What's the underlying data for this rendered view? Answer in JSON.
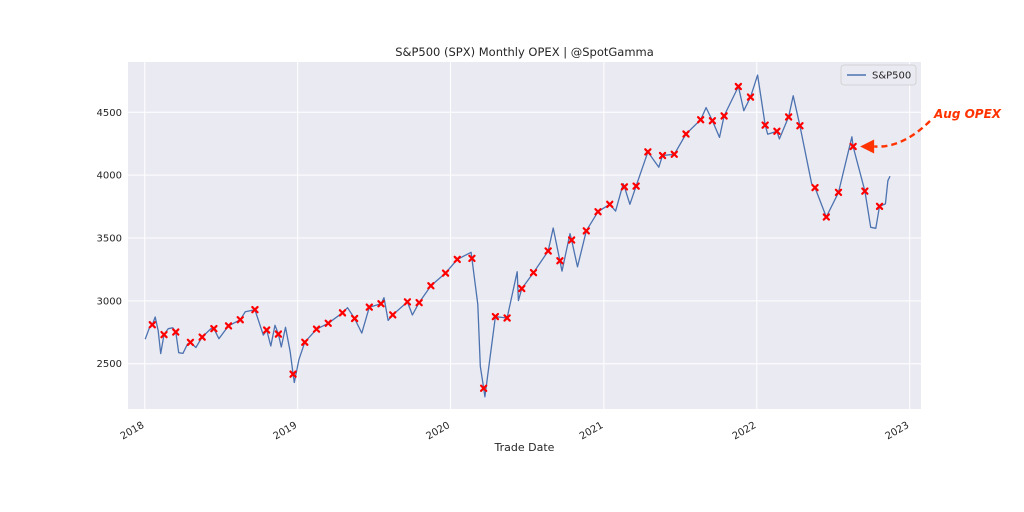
{
  "chart_data": {
    "type": "line",
    "title": "S&P500 (SPX) Monthly OPEX | @SpotGamma",
    "xlabel": "Trade Date",
    "ylabel": "",
    "xlim": [
      "2017-11-22",
      "2023-01-28"
    ],
    "ylim": [
      2140,
      4900
    ],
    "x_ticks": [
      {
        "date": "2018-01-01",
        "label": "2018"
      },
      {
        "date": "2019-01-01",
        "label": "2019"
      },
      {
        "date": "2020-01-01",
        "label": "2020"
      },
      {
        "date": "2021-01-01",
        "label": "2021"
      },
      {
        "date": "2022-01-01",
        "label": "2022"
      },
      {
        "date": "2023-01-01",
        "label": "2023"
      }
    ],
    "y_ticks": [
      2500,
      3000,
      3500,
      4000,
      4500
    ],
    "grid": true,
    "legend": "top-right",
    "colors": {
      "line": "#4c72b0",
      "marker": "#ff0000",
      "annotation": "#ff3300",
      "background": "#eaeaf2",
      "grid": "#ffffff"
    },
    "series": [
      {
        "name": "S&P500",
        "points": [
          [
            "2018-01-02",
            2695
          ],
          [
            "2018-01-12",
            2786
          ],
          [
            "2018-01-19",
            2810
          ],
          [
            "2018-01-26",
            2872
          ],
          [
            "2018-02-02",
            2762
          ],
          [
            "2018-02-08",
            2581
          ],
          [
            "2018-02-16",
            2732
          ],
          [
            "2018-02-26",
            2779
          ],
          [
            "2018-03-09",
            2786
          ],
          [
            "2018-03-16",
            2752
          ],
          [
            "2018-03-23",
            2588
          ],
          [
            "2018-04-02",
            2582
          ],
          [
            "2018-04-13",
            2656
          ],
          [
            "2018-04-20",
            2670
          ],
          [
            "2018-05-03",
            2629
          ],
          [
            "2018-05-18",
            2712
          ],
          [
            "2018-06-08",
            2779
          ],
          [
            "2018-06-15",
            2779
          ],
          [
            "2018-06-27",
            2699
          ],
          [
            "2018-07-20",
            2801
          ],
          [
            "2018-08-17",
            2850
          ],
          [
            "2018-08-29",
            2914
          ],
          [
            "2018-09-21",
            2930
          ],
          [
            "2018-10-11",
            2728
          ],
          [
            "2018-10-19",
            2768
          ],
          [
            "2018-10-29",
            2641
          ],
          [
            "2018-11-08",
            2806
          ],
          [
            "2018-11-16",
            2736
          ],
          [
            "2018-11-23",
            2633
          ],
          [
            "2018-12-03",
            2790
          ],
          [
            "2018-12-14",
            2600
          ],
          [
            "2018-12-21",
            2417
          ],
          [
            "2018-12-24",
            2351
          ],
          [
            "2019-01-04",
            2532
          ],
          [
            "2019-01-18",
            2671
          ],
          [
            "2019-02-15",
            2775
          ],
          [
            "2019-03-15",
            2822
          ],
          [
            "2019-04-18",
            2905
          ],
          [
            "2019-04-30",
            2946
          ],
          [
            "2019-05-17",
            2860
          ],
          [
            "2019-06-03",
            2744
          ],
          [
            "2019-06-21",
            2950
          ],
          [
            "2019-07-19",
            2977
          ],
          [
            "2019-07-26",
            3025
          ],
          [
            "2019-08-05",
            2845
          ],
          [
            "2019-08-16",
            2889
          ],
          [
            "2019-09-20",
            2992
          ],
          [
            "2019-10-02",
            2888
          ],
          [
            "2019-10-18",
            2986
          ],
          [
            "2019-11-15",
            3120
          ],
          [
            "2019-12-20",
            3221
          ],
          [
            "2020-01-17",
            3330
          ],
          [
            "2020-02-19",
            3386
          ],
          [
            "2020-02-21",
            3338
          ],
          [
            "2020-03-06",
            2972
          ],
          [
            "2020-03-12",
            2480
          ],
          [
            "2020-03-20",
            2305
          ],
          [
            "2020-03-23",
            2237
          ],
          [
            "2020-04-17",
            2875
          ],
          [
            "2020-05-15",
            2864
          ],
          [
            "2020-06-08",
            3232
          ],
          [
            "2020-06-11",
            3002
          ],
          [
            "2020-06-19",
            3098
          ],
          [
            "2020-07-17",
            3225
          ],
          [
            "2020-08-21",
            3397
          ],
          [
            "2020-09-02",
            3580
          ],
          [
            "2020-09-18",
            3319
          ],
          [
            "2020-09-23",
            3237
          ],
          [
            "2020-10-12",
            3535
          ],
          [
            "2020-10-16",
            3484
          ],
          [
            "2020-10-30",
            3270
          ],
          [
            "2020-11-20",
            3557
          ],
          [
            "2020-12-18",
            3709
          ],
          [
            "2021-01-15",
            3768
          ],
          [
            "2021-01-29",
            3714
          ],
          [
            "2021-02-16",
            3932
          ],
          [
            "2021-02-19",
            3907
          ],
          [
            "2021-03-04",
            3768
          ],
          [
            "2021-03-19",
            3913
          ],
          [
            "2021-04-16",
            4185
          ],
          [
            "2021-05-12",
            4063
          ],
          [
            "2021-05-21",
            4156
          ],
          [
            "2021-06-18",
            4166
          ],
          [
            "2021-07-16",
            4327
          ],
          [
            "2021-08-20",
            4441
          ],
          [
            "2021-09-02",
            4537
          ],
          [
            "2021-09-17",
            4433
          ],
          [
            "2021-10-04",
            4300
          ],
          [
            "2021-10-15",
            4471
          ],
          [
            "2021-11-18",
            4705
          ],
          [
            "2021-12-01",
            4513
          ],
          [
            "2021-12-17",
            4621
          ],
          [
            "2022-01-03",
            4796
          ],
          [
            "2022-01-21",
            4398
          ],
          [
            "2022-01-27",
            4326
          ],
          [
            "2022-02-18",
            4349
          ],
          [
            "2022-02-24",
            4288
          ],
          [
            "2022-03-18",
            4463
          ],
          [
            "2022-03-29",
            4631
          ],
          [
            "2022-04-14",
            4393
          ],
          [
            "2022-05-12",
            3930
          ],
          [
            "2022-05-20",
            3901
          ],
          [
            "2022-06-16",
            3667
          ],
          [
            "2022-07-15",
            3863
          ],
          [
            "2022-08-16",
            4305
          ],
          [
            "2022-08-19",
            4228
          ],
          [
            "2022-09-16",
            3873
          ],
          [
            "2022-09-30",
            3585
          ],
          [
            "2022-10-12",
            3577
          ],
          [
            "2022-10-21",
            3752
          ],
          [
            "2022-11-04",
            3771
          ],
          [
            "2022-11-10",
            3956
          ],
          [
            "2022-11-15",
            3992
          ]
        ]
      },
      {
        "name": "OPEX",
        "points": [
          [
            "2018-01-19",
            2810
          ],
          [
            "2018-02-16",
            2732
          ],
          [
            "2018-03-16",
            2752
          ],
          [
            "2018-04-20",
            2670
          ],
          [
            "2018-05-18",
            2712
          ],
          [
            "2018-06-15",
            2779
          ],
          [
            "2018-07-20",
            2801
          ],
          [
            "2018-08-17",
            2850
          ],
          [
            "2018-09-21",
            2930
          ],
          [
            "2018-10-19",
            2768
          ],
          [
            "2018-11-16",
            2736
          ],
          [
            "2018-12-21",
            2417
          ],
          [
            "2019-01-18",
            2671
          ],
          [
            "2019-02-15",
            2775
          ],
          [
            "2019-03-15",
            2822
          ],
          [
            "2019-04-18",
            2905
          ],
          [
            "2019-05-17",
            2860
          ],
          [
            "2019-06-21",
            2950
          ],
          [
            "2019-07-19",
            2977
          ],
          [
            "2019-08-16",
            2889
          ],
          [
            "2019-09-20",
            2992
          ],
          [
            "2019-10-18",
            2986
          ],
          [
            "2019-11-15",
            3120
          ],
          [
            "2019-12-20",
            3221
          ],
          [
            "2020-01-17",
            3330
          ],
          [
            "2020-02-21",
            3338
          ],
          [
            "2020-03-20",
            2305
          ],
          [
            "2020-04-17",
            2875
          ],
          [
            "2020-05-15",
            2864
          ],
          [
            "2020-06-19",
            3098
          ],
          [
            "2020-07-17",
            3225
          ],
          [
            "2020-08-21",
            3397
          ],
          [
            "2020-09-18",
            3319
          ],
          [
            "2020-10-16",
            3484
          ],
          [
            "2020-11-20",
            3557
          ],
          [
            "2020-12-18",
            3709
          ],
          [
            "2021-01-15",
            3768
          ],
          [
            "2021-02-19",
            3907
          ],
          [
            "2021-03-19",
            3913
          ],
          [
            "2021-04-16",
            4185
          ],
          [
            "2021-05-21",
            4156
          ],
          [
            "2021-06-18",
            4166
          ],
          [
            "2021-07-16",
            4327
          ],
          [
            "2021-08-20",
            4441
          ],
          [
            "2021-09-17",
            4433
          ],
          [
            "2021-10-15",
            4471
          ],
          [
            "2021-11-18",
            4705
          ],
          [
            "2021-12-17",
            4621
          ],
          [
            "2022-01-21",
            4398
          ],
          [
            "2022-02-18",
            4349
          ],
          [
            "2022-03-18",
            4463
          ],
          [
            "2022-04-14",
            4393
          ],
          [
            "2022-05-20",
            3901
          ],
          [
            "2022-06-16",
            3667
          ],
          [
            "2022-07-15",
            3863
          ],
          [
            "2022-08-19",
            4228
          ],
          [
            "2022-09-16",
            3873
          ],
          [
            "2022-10-21",
            3752
          ]
        ]
      }
    ],
    "legend_entries": [
      "S&P500"
    ],
    "annotation": {
      "text": "Aug OPEX",
      "target": [
        "2022-08-19",
        4228
      ]
    }
  }
}
